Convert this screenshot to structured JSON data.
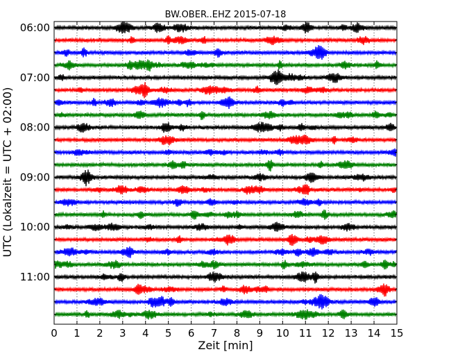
{
  "chart_data": {
    "type": "line",
    "title": "BW.OBER..EHZ 2015-07-18",
    "xlabel": "Zeit  [min]",
    "ylabel": "UTC (Lokalzeit = UTC + 02:00)",
    "xlim": [
      0,
      15
    ],
    "x_ticks": [
      "0",
      "1",
      "2",
      "3",
      "4",
      "5",
      "6",
      "7",
      "8",
      "9",
      "10",
      "11",
      "12",
      "13",
      "14",
      "15"
    ],
    "y_tick_labels": [
      "06:00",
      "07:00",
      "08:00",
      "09:00",
      "10:00",
      "11:00"
    ],
    "grid": "vertical dotted at each minute",
    "trace_interval_minutes": 15,
    "trace_start_times": [
      "06:00",
      "06:15",
      "06:30",
      "06:45",
      "07:00",
      "07:15",
      "07:30",
      "07:45",
      "08:00",
      "08:15",
      "08:30",
      "08:45",
      "09:00",
      "09:15",
      "09:30",
      "09:45",
      "10:00",
      "10:15",
      "10:30",
      "10:45",
      "11:00",
      "11:15",
      "11:30",
      "11:45"
    ],
    "trace_color_cycle": [
      "#000000",
      "#ff0000",
      "#0000ff",
      "#008000"
    ],
    "series_note_values": "Continuous seismogram traces; amplitude not annotated."
  }
}
